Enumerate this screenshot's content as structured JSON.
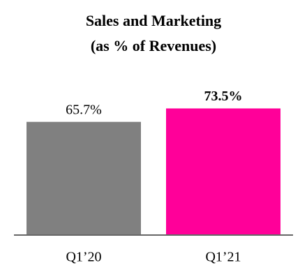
{
  "chart_data": {
    "type": "bar",
    "title": "Sales and Marketing",
    "subtitle": "(as % of Revenues)",
    "categories": [
      "Q1’20",
      "Q1’21"
    ],
    "values": [
      65.7,
      73.5
    ],
    "value_labels": [
      "65.7%",
      "73.5%"
    ],
    "colors": [
      "#808080",
      "#ff0099"
    ]
  }
}
